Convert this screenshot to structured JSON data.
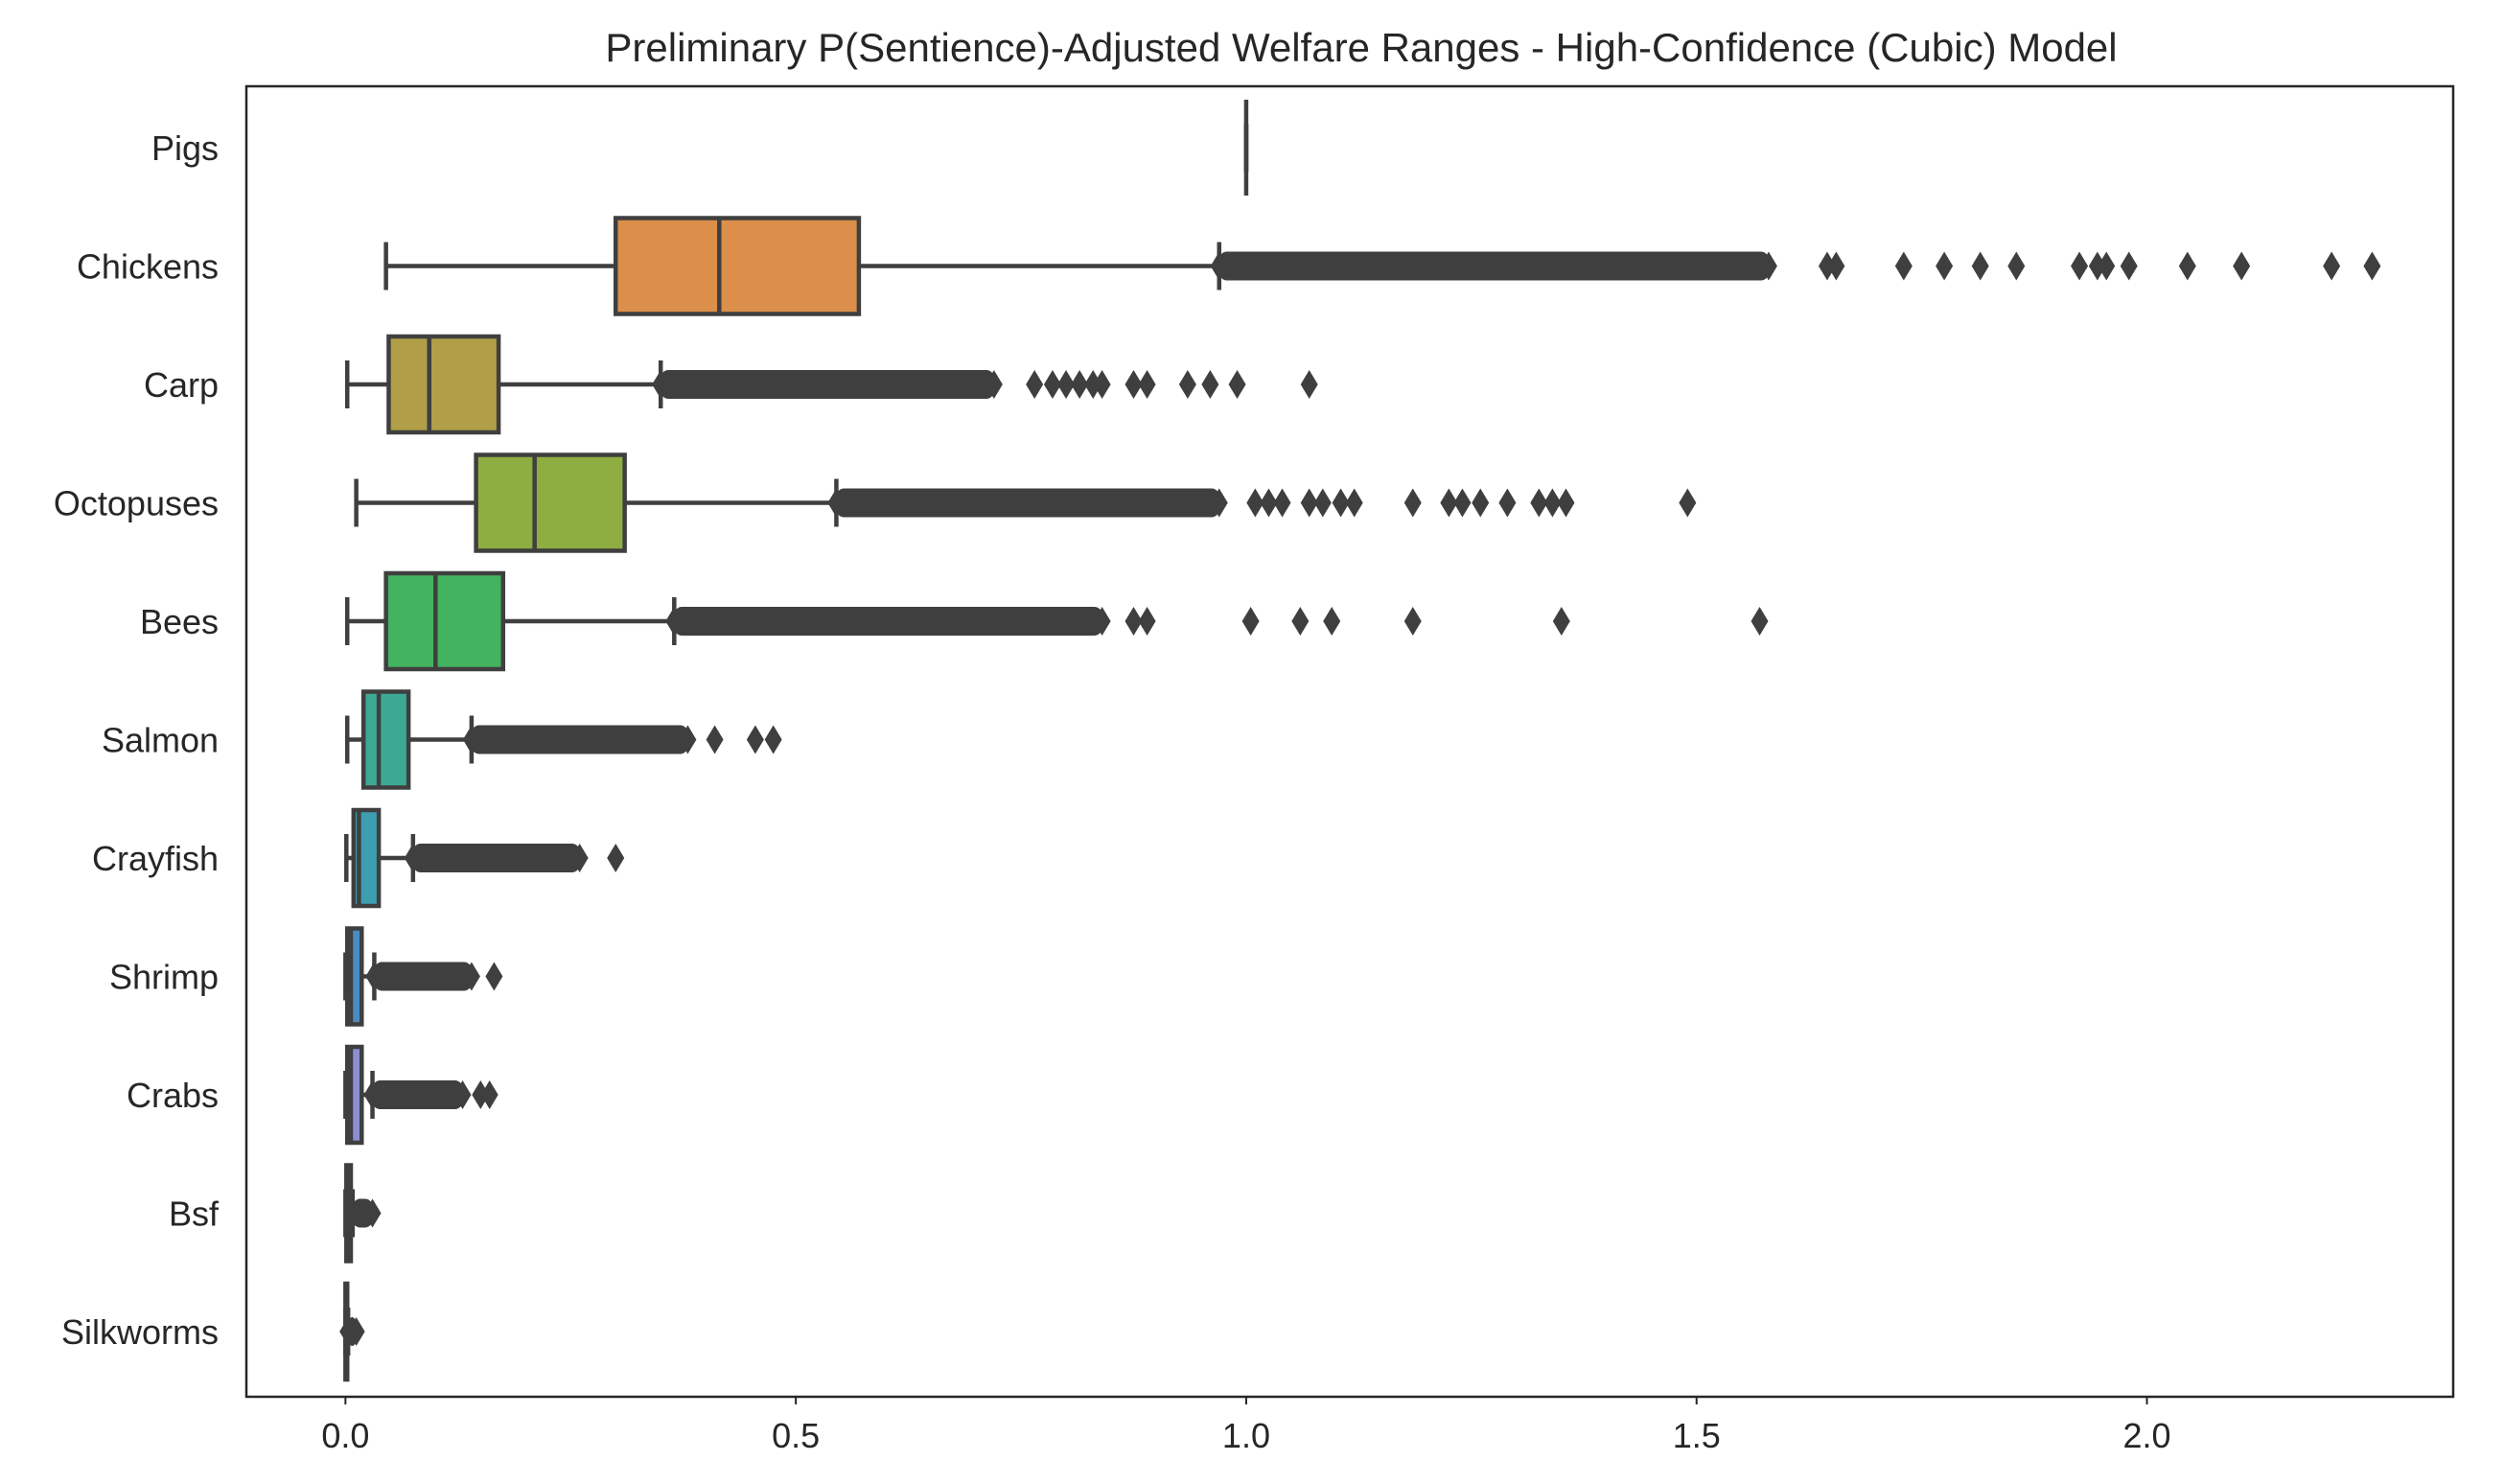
{
  "chart_data": {
    "type": "box",
    "orientation": "horizontal",
    "title": "Preliminary P(Sentience)-Adjusted Welfare Ranges - High-Confidence (Cubic) Model",
    "xlabel": "",
    "ylabel": "",
    "xlim": [
      -0.11,
      2.34
    ],
    "xticks": [
      0.0,
      0.5,
      1.0,
      1.5,
      2.0
    ],
    "xtick_labels": [
      "0.0",
      "0.5",
      "1.0",
      "1.5",
      "2.0"
    ],
    "grid": false,
    "categories": [
      "Pigs",
      "Chickens",
      "Carp",
      "Octopuses",
      "Bees",
      "Salmon",
      "Crayfish",
      "Shrimp",
      "Crabs",
      "Bsf",
      "Silkworms"
    ],
    "boxes": [
      {
        "name": "Pigs",
        "whisker_low": 1.0,
        "q1": 1.0,
        "median": 1.0,
        "q3": 1.0,
        "whisker_high": 1.0,
        "color": "#ea96a3",
        "outlier_band": null,
        "outliers": []
      },
      {
        "name": "Chickens",
        "whisker_low": 0.045,
        "q1": 0.3,
        "median": 0.415,
        "q3": 0.57,
        "whisker_high": 0.97,
        "color": "#db8f4a",
        "outlier_band": [
          0.97,
          1.58
        ],
        "outliers": [
          1.645,
          1.655,
          1.73,
          1.775,
          1.815,
          1.855,
          1.925,
          1.945,
          1.955,
          1.98,
          2.045,
          2.105,
          2.205,
          2.25
        ]
      },
      {
        "name": "Carp",
        "whisker_low": 0.002,
        "q1": 0.048,
        "median": 0.093,
        "q3": 0.17,
        "whisker_high": 0.35,
        "color": "#b09f46",
        "outlier_band": [
          0.35,
          0.72
        ],
        "outliers": [
          0.765,
          0.785,
          0.8,
          0.815,
          0.83,
          0.84,
          0.875,
          0.89,
          0.935,
          0.96,
          0.99,
          1.07
        ]
      },
      {
        "name": "Octopuses",
        "whisker_low": 0.012,
        "q1": 0.145,
        "median": 0.21,
        "q3": 0.31,
        "whisker_high": 0.545,
        "color": "#8fae42",
        "outlier_band": [
          0.545,
          0.97
        ],
        "outliers": [
          1.01,
          1.025,
          1.04,
          1.07,
          1.085,
          1.105,
          1.12,
          1.185,
          1.225,
          1.24,
          1.26,
          1.29,
          1.325,
          1.34,
          1.355,
          1.49
        ]
      },
      {
        "name": "Bees",
        "whisker_low": 0.002,
        "q1": 0.045,
        "median": 0.1,
        "q3": 0.175,
        "whisker_high": 0.365,
        "color": "#43b35f",
        "outlier_band": [
          0.365,
          0.84
        ],
        "outliers": [
          0.875,
          0.89,
          1.005,
          1.06,
          1.095,
          1.185,
          1.35,
          1.57
        ]
      },
      {
        "name": "Salmon",
        "whisker_low": 0.002,
        "q1": 0.02,
        "median": 0.037,
        "q3": 0.07,
        "whisker_high": 0.14,
        "color": "#3ea993",
        "outlier_band": [
          0.14,
          0.38
        ],
        "outliers": [
          0.41,
          0.455,
          0.475
        ]
      },
      {
        "name": "Crayfish",
        "whisker_low": 0.001,
        "q1": 0.009,
        "median": 0.015,
        "q3": 0.037,
        "whisker_high": 0.075,
        "color": "#3d9eb0",
        "outlier_band": [
          0.075,
          0.26
        ],
        "outliers": [
          0.3
        ]
      },
      {
        "name": "Shrimp",
        "whisker_low": 0.0,
        "q1": 0.002,
        "median": 0.006,
        "q3": 0.018,
        "whisker_high": 0.032,
        "color": "#4a8cc0",
        "outlier_band": [
          0.032,
          0.14
        ],
        "outliers": [
          0.165
        ]
      },
      {
        "name": "Crabs",
        "whisker_low": 0.0,
        "q1": 0.002,
        "median": 0.006,
        "q3": 0.018,
        "whisker_high": 0.03,
        "color": "#8c8fd4",
        "outlier_band": [
          0.03,
          0.13
        ],
        "outliers": [
          0.15,
          0.16
        ]
      },
      {
        "name": "Bsf",
        "whisker_low": 0.0,
        "q1": 0.001,
        "median": 0.002,
        "q3": 0.006,
        "whisker_high": 0.008,
        "color": "#b78fdc",
        "outlier_band": [
          0.008,
          0.03
        ],
        "outliers": []
      },
      {
        "name": "Silkworms",
        "whisker_low": 0.0,
        "q1": 0.0,
        "median": 0.001,
        "q3": 0.002,
        "whisker_high": 0.003,
        "color": "#dc8fc6",
        "outlier_band": [
          0.003,
          0.012
        ],
        "outliers": []
      }
    ]
  },
  "colors": {
    "edge": "#3f3f3f",
    "text": "#262626",
    "background": "#ffffff"
  }
}
